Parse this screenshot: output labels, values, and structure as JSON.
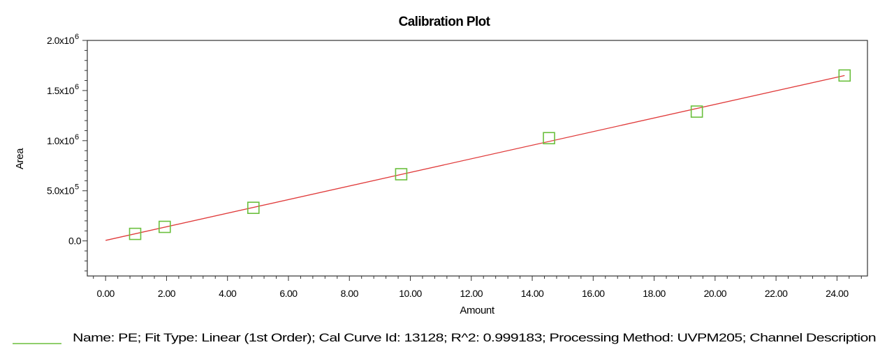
{
  "chart_data": {
    "type": "scatter",
    "title": "Calibration Plot",
    "xlabel": "Amount",
    "ylabel": "Area",
    "xlim": [
      -0.6,
      25.0
    ],
    "ylim": [
      -350000,
      2000000
    ],
    "x_ticks": [
      0,
      2,
      4,
      6,
      8,
      10,
      12,
      14,
      16,
      18,
      20,
      22,
      24
    ],
    "x_tick_labels": [
      "0.00",
      "2.00",
      "4.00",
      "6.00",
      "8.00",
      "10.00",
      "12.00",
      "14.00",
      "16.00",
      "18.00",
      "20.00",
      "22.00",
      "24.00"
    ],
    "y_ticks": [
      0,
      500000,
      1000000,
      1500000,
      2000000
    ],
    "y_tick_labels": [
      {
        "mantissa": "0.0",
        "exp": ""
      },
      {
        "mantissa": "5.0x10",
        "exp": "5"
      },
      {
        "mantissa": "1.0x10",
        "exp": "6"
      },
      {
        "mantissa": "1.5x10",
        "exp": "6"
      },
      {
        "mantissa": "2.0x10",
        "exp": "6"
      }
    ],
    "grid": false,
    "points": [
      {
        "x": 0.97,
        "y": 70000
      },
      {
        "x": 1.94,
        "y": 140000
      },
      {
        "x": 4.85,
        "y": 330000
      },
      {
        "x": 9.7,
        "y": 665000
      },
      {
        "x": 14.55,
        "y": 1025000
      },
      {
        "x": 19.4,
        "y": 1290000
      },
      {
        "x": 24.25,
        "y": 1650000
      }
    ],
    "fit_line": {
      "x": [
        0,
        24.25
      ],
      "y": [
        5000,
        1650000
      ]
    },
    "colors": {
      "points": "#6abf3c",
      "fit_line": "#e03a3a",
      "axes": "#333333",
      "legend_swatch": "#6abf3c"
    },
    "legend": {
      "position": "bottom",
      "text": "Name: PE;   Fit Type: Linear (1st Order);   Cal Curve Id: 13128;   R^2: 0.999183;   Processing Method: UVPM205; Channel Description"
    }
  }
}
